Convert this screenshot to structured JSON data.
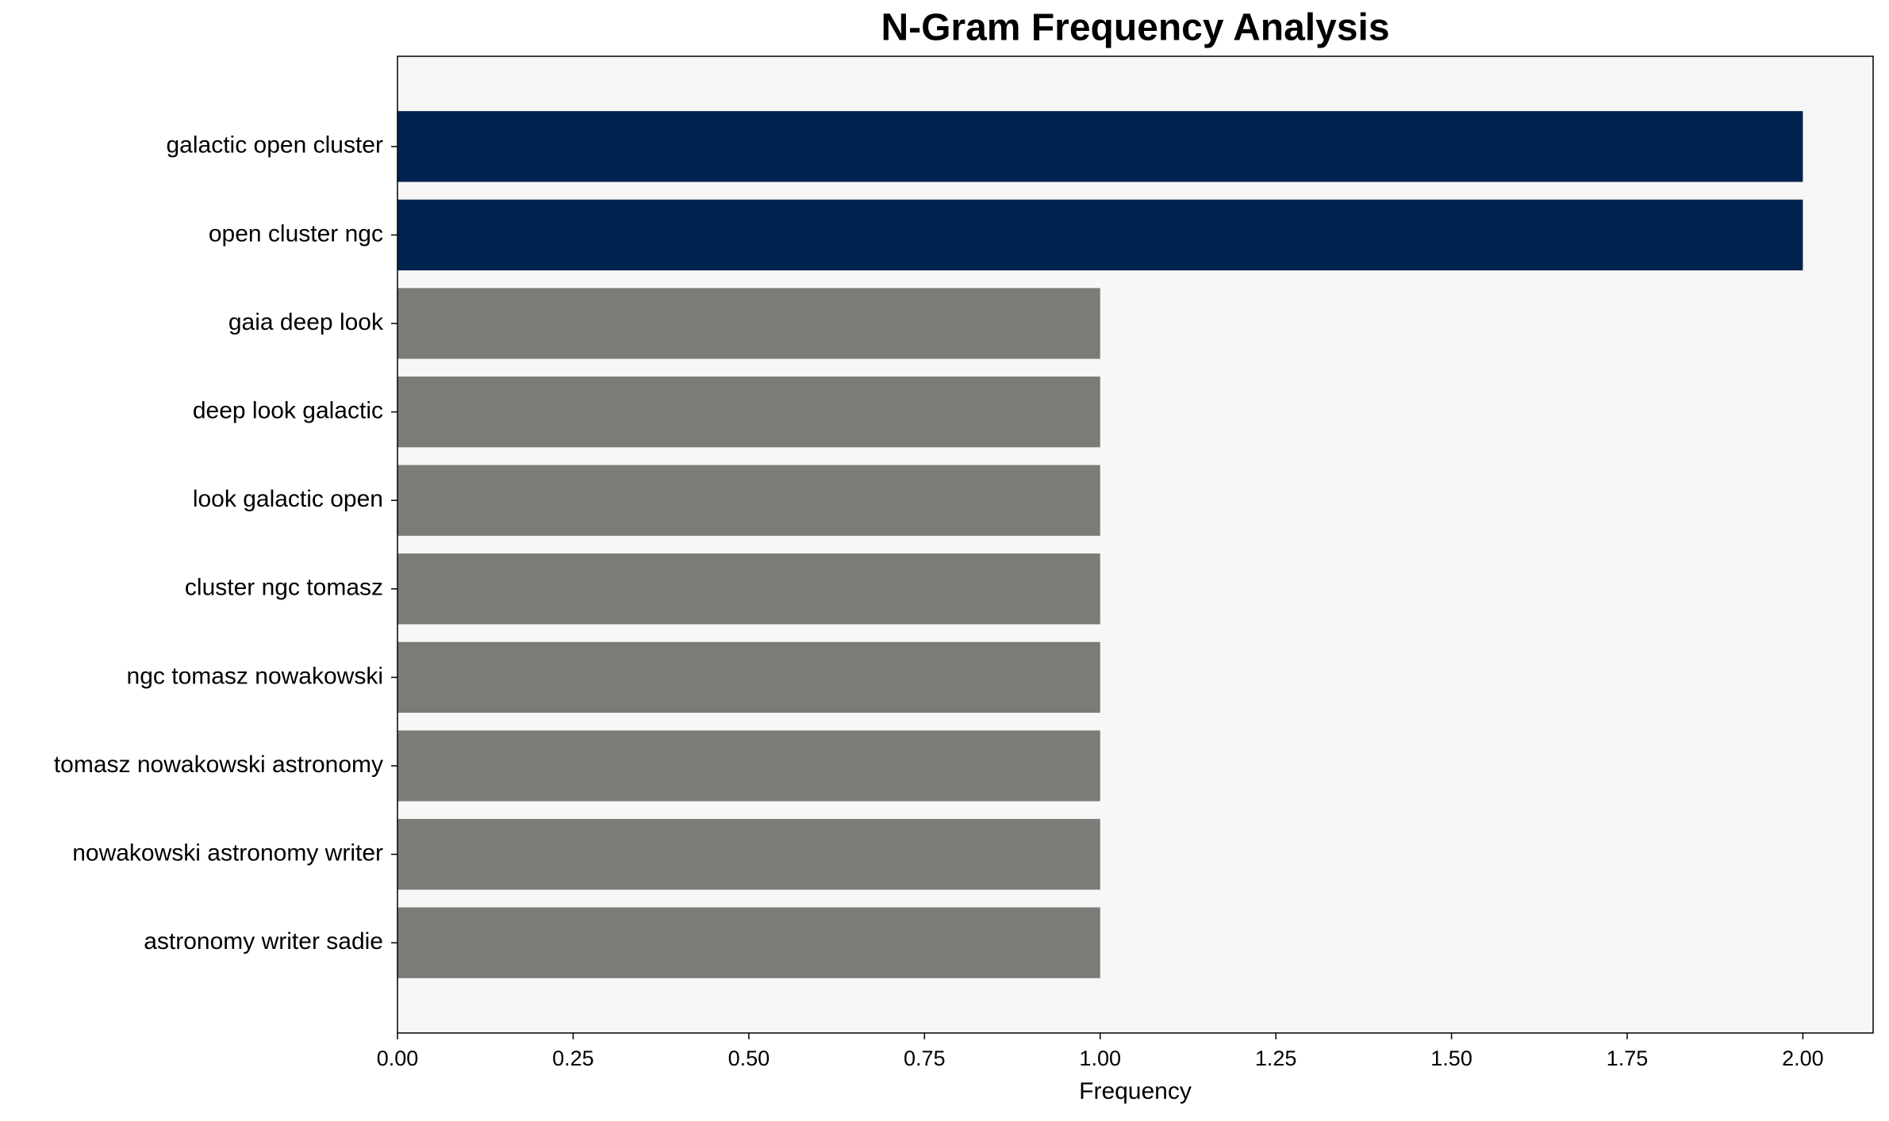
{
  "chart_data": {
    "type": "barh",
    "title": "N-Gram Frequency Analysis",
    "xlabel": "Frequency",
    "categories": [
      "galactic open cluster",
      "open cluster ngc",
      "gaia deep look",
      "deep look galactic",
      "look galactic open",
      "cluster ngc tomasz",
      "ngc tomasz nowakowski",
      "tomasz nowakowski astronomy",
      "nowakowski astronomy writer",
      "astronomy writer sadie"
    ],
    "values": [
      2,
      2,
      1,
      1,
      1,
      1,
      1,
      1,
      1,
      1
    ],
    "colors": [
      "#00224e",
      "#00224e",
      "#7b7b77",
      "#7b7b77",
      "#7b7b77",
      "#7b7b77",
      "#7b7b77",
      "#7b7b77",
      "#7b7b77",
      "#7b7b77"
    ],
    "xlim": [
      0,
      2.1
    ],
    "xticks": [
      {
        "value": 0,
        "label": "0.00"
      },
      {
        "value": 0.25,
        "label": "0.25"
      },
      {
        "value": 0.5,
        "label": "0.50"
      },
      {
        "value": 0.75,
        "label": "0.75"
      },
      {
        "value": 1,
        "label": "1.00"
      },
      {
        "value": 1.25,
        "label": "1.25"
      },
      {
        "value": 1.5,
        "label": "1.50"
      },
      {
        "value": 1.75,
        "label": "1.75"
      },
      {
        "value": 2,
        "label": "2.00"
      }
    ],
    "grid": false
  }
}
